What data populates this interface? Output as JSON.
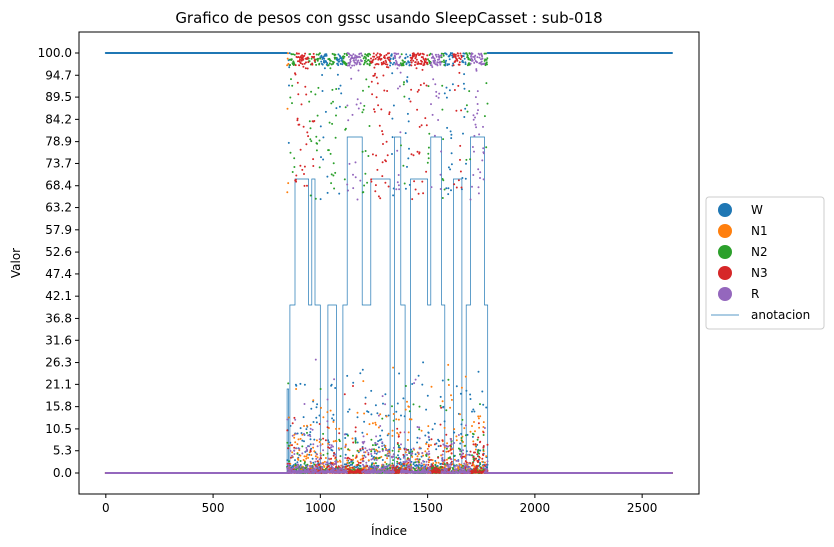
{
  "chart_data": {
    "type": "scatter",
    "title": "Grafico de pesos con gssc usando SleepCasset :  sub-018",
    "xlabel": "Índice",
    "ylabel": "Valor",
    "xlim": [
      -125,
      2765
    ],
    "ylim": [
      -5,
      105
    ],
    "x_ticks": [
      0,
      500,
      1000,
      1500,
      2000,
      2500
    ],
    "y_ticks": [
      "0.0",
      "5.3",
      "10.5",
      "15.8",
      "21.1",
      "26.3",
      "31.6",
      "36.8",
      "42.1",
      "47.4",
      "52.6",
      "57.9",
      "63.2",
      "68.4",
      "73.7",
      "78.9",
      "84.2",
      "89.5",
      "94.7",
      "100.0"
    ],
    "n_points": 2640,
    "legend_position": "center-right outside",
    "series": [
      {
        "name": "W",
        "color": "#1f77b4"
      },
      {
        "name": "N1",
        "color": "#ff7f0e"
      },
      {
        "name": "N2",
        "color": "#2ca02c"
      },
      {
        "name": "N3",
        "color": "#d62728"
      },
      {
        "name": "R",
        "color": "#9467bd"
      }
    ],
    "annotation": {
      "name": "anotacion",
      "color": "#1f77b4",
      "stage_values": {
        "W": 0,
        "N1": 20,
        "N2": 40,
        "N3": 70,
        "R": 80
      },
      "segments": [
        {
          "x": [
            0,
            845
          ],
          "stage": "W"
        },
        {
          "x": [
            845,
            852
          ],
          "stage": "N1"
        },
        {
          "x": [
            852,
            858
          ],
          "stage": "W"
        },
        {
          "x": [
            858,
            882
          ],
          "stage": "N2"
        },
        {
          "x": [
            882,
            945
          ],
          "stage": "N3"
        },
        {
          "x": [
            945,
            960
          ],
          "stage": "N2"
        },
        {
          "x": [
            960,
            975
          ],
          "stage": "N3"
        },
        {
          "x": [
            975,
            1000
          ],
          "stage": "N2"
        },
        {
          "x": [
            1000,
            1035
          ],
          "stage": "W"
        },
        {
          "x": [
            1035,
            1075
          ],
          "stage": "N2"
        },
        {
          "x": [
            1075,
            1105
          ],
          "stage": "W"
        },
        {
          "x": [
            1105,
            1125
          ],
          "stage": "N2"
        },
        {
          "x": [
            1125,
            1195
          ],
          "stage": "R"
        },
        {
          "x": [
            1195,
            1235
          ],
          "stage": "N2"
        },
        {
          "x": [
            1235,
            1325
          ],
          "stage": "N3"
        },
        {
          "x": [
            1325,
            1345
          ],
          "stage": "W"
        },
        {
          "x": [
            1345,
            1375
          ],
          "stage": "R"
        },
        {
          "x": [
            1375,
            1395
          ],
          "stage": "N2"
        },
        {
          "x": [
            1395,
            1420
          ],
          "stage": "W"
        },
        {
          "x": [
            1420,
            1500
          ],
          "stage": "N3"
        },
        {
          "x": [
            1500,
            1515
          ],
          "stage": "N2"
        },
        {
          "x": [
            1515,
            1565
          ],
          "stage": "R"
        },
        {
          "x": [
            1565,
            1580
          ],
          "stage": "N2"
        },
        {
          "x": [
            1580,
            1620
          ],
          "stage": "W"
        },
        {
          "x": [
            1620,
            1660
          ],
          "stage": "N3"
        },
        {
          "x": [
            1660,
            1680
          ],
          "stage": "W"
        },
        {
          "x": [
            1680,
            1700
          ],
          "stage": "N2"
        },
        {
          "x": [
            1700,
            1765
          ],
          "stage": "R"
        },
        {
          "x": [
            1765,
            1780
          ],
          "stage": "N2"
        },
        {
          "x": [
            1780,
            2640
          ],
          "stage": "W"
        }
      ]
    }
  }
}
